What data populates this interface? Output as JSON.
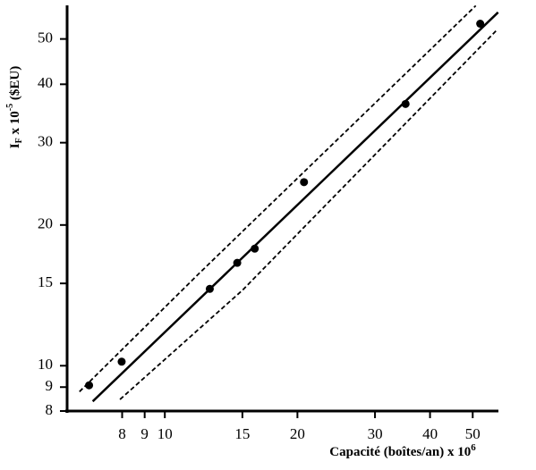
{
  "chart_data": {
    "type": "scatter",
    "x_label": {
      "main": "Capacité (boîtes/an) x 10",
      "sup": "6"
    },
    "y_label": {
      "main": "I",
      "sub": "F",
      "mid": " x 10",
      "sup": "-5",
      "end": "  ($EU)"
    },
    "log_x": true,
    "log_y": true,
    "xlim": [
      6,
      58
    ],
    "ylim": [
      8,
      59
    ],
    "xticks": [
      8,
      9,
      10,
      15,
      20,
      30,
      40,
      50
    ],
    "yticks": [
      8,
      9,
      10,
      15,
      20,
      30,
      40,
      50
    ],
    "color": "#000000",
    "x": [
      6.73,
      7.98,
      12.65,
      14.6,
      16.0,
      20.7,
      35.2,
      52.0
    ],
    "values": [
      9.08,
      10.2,
      14.6,
      16.6,
      17.8,
      24.7,
      36.3,
      53.9
    ],
    "lines": [
      {
        "style": "solid",
        "x": [
          6.86,
          57.1
        ],
        "values": [
          8.39,
          57.0
        ]
      },
      {
        "style": "dashed",
        "x": [
          6.4,
          12,
          50.8
        ],
        "values": [
          8.8,
          15.8,
          58.9
        ]
      },
      {
        "style": "dashed",
        "x": [
          7.91,
          15,
          57
        ],
        "values": [
          8.47,
          14.5,
          52.5
        ]
      }
    ]
  }
}
